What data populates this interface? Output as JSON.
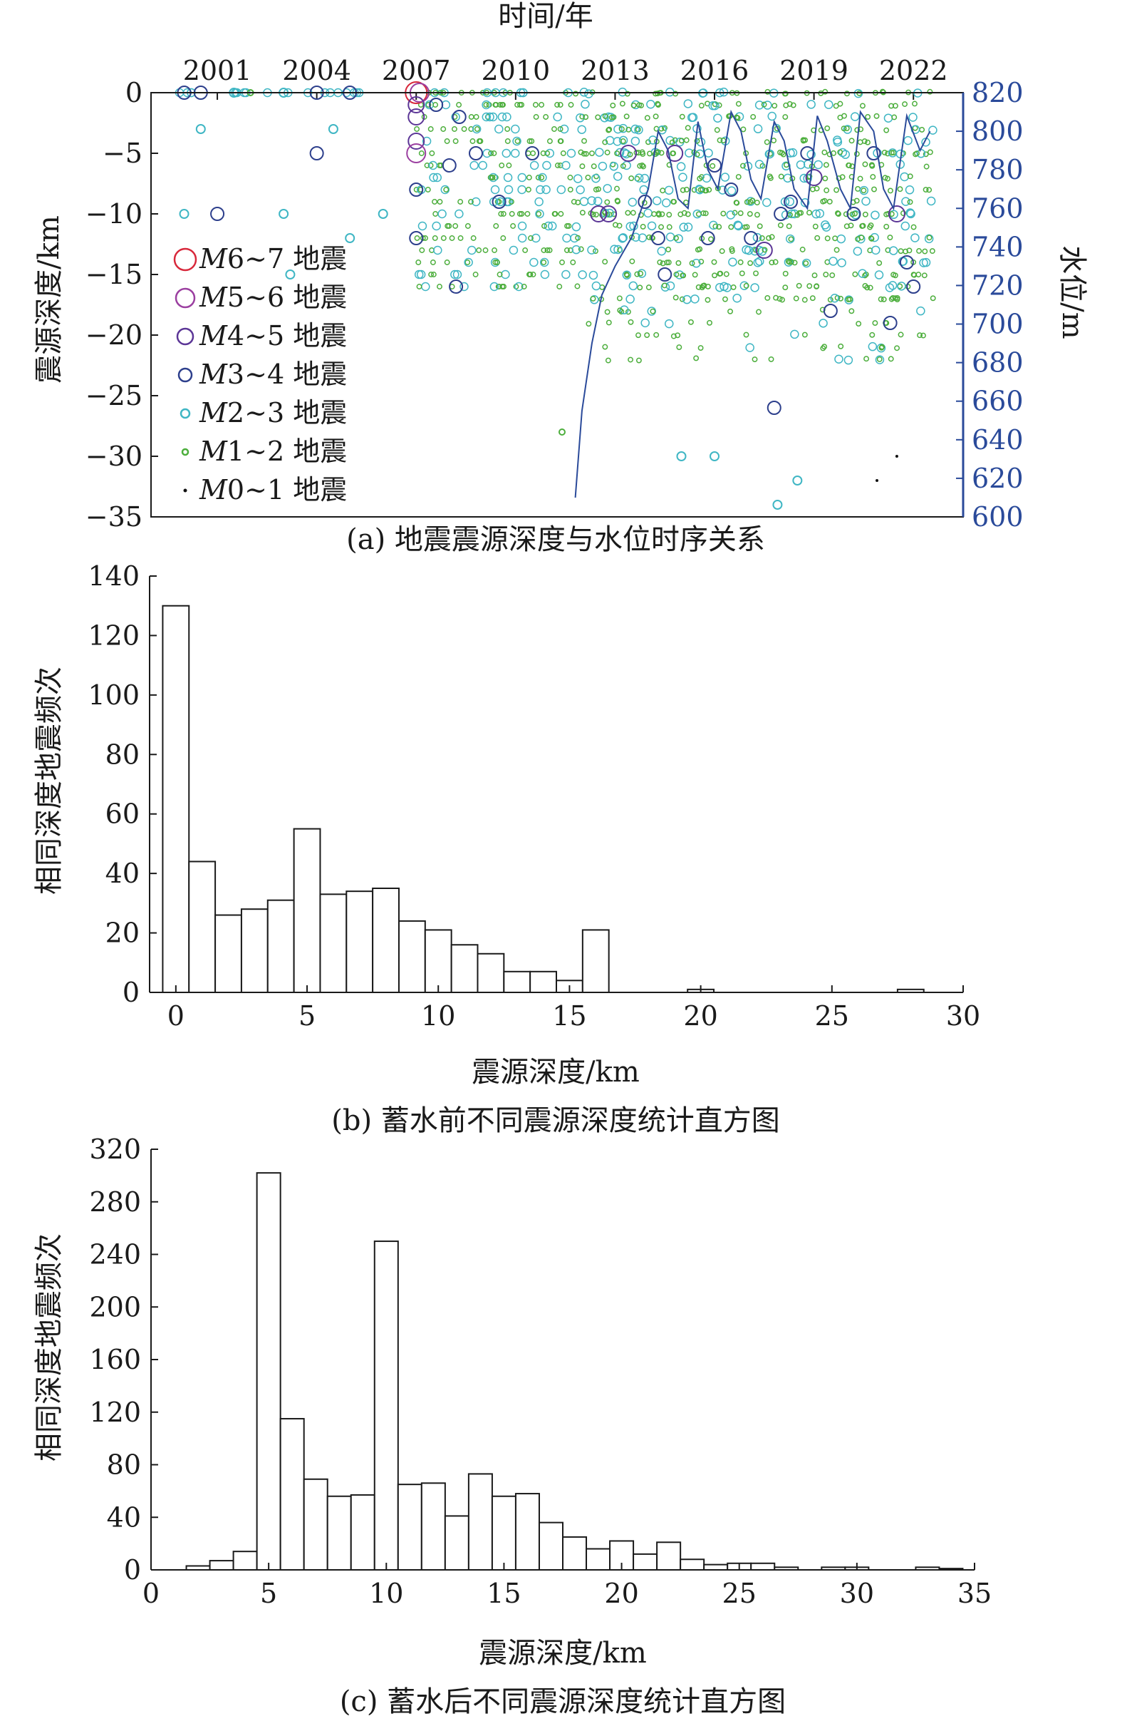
{
  "charts": [
    {
      "type": "scatter",
      "caption": "(a) 地震震源深度与水位时序关系",
      "top_label": "时间/年",
      "ylabel_left": "震源深度/km",
      "ylabel_right": "水位/m",
      "xlim": [
        1999.0,
        2023.5
      ],
      "xticks": [
        2001,
        2004,
        2007,
        2010,
        2013,
        2016,
        2019,
        2022
      ],
      "ylim_left": [
        -35,
        0
      ],
      "yticks_left": [
        0,
        -5,
        -10,
        -15,
        -20,
        -25,
        -30,
        -35
      ],
      "ylim_right": [
        600,
        820
      ],
      "yticks_right": [
        600,
        620,
        640,
        660,
        680,
        700,
        720,
        740,
        760,
        780,
        800,
        820
      ],
      "legend": [
        {
          "label": "M6~7 地震",
          "mag": "M",
          "rest": "6~7 地震",
          "color": "#d8283b",
          "size": 15
        },
        {
          "label": "M5~6 地震",
          "mag": "M",
          "rest": "5~6 地震",
          "color": "#9b3fa0",
          "size": 13
        },
        {
          "label": "M4~5 地震",
          "mag": "M",
          "rest": "4~5 地震",
          "color": "#5b3596",
          "size": 11
        },
        {
          "label": "M3~4 地震",
          "mag": "M",
          "rest": "3~4 地震",
          "color": "#2d3f8c",
          "size": 9
        },
        {
          "label": "M2~3 地震",
          "mag": "M",
          "rest": "2~3 地震",
          "color": "#3fb6c4",
          "size": 6
        },
        {
          "label": "M1~2 地震",
          "mag": "M",
          "rest": "1~2 地震",
          "color": "#4cae3c",
          "size": 4
        },
        {
          "label": "M0~1 地震",
          "mag": "M",
          "rest": "0~1 地震",
          "color": "#111111",
          "size": 2
        }
      ],
      "water_level": {
        "color": "#2a4a9a",
        "x": [
          2011.8,
          2012.0,
          2012.3,
          2012.6,
          2013.0,
          2013.5,
          2014.0,
          2014.3,
          2014.6,
          2014.9,
          2015.2,
          2015.5,
          2015.8,
          2016.1,
          2016.5,
          2016.8,
          2017.1,
          2017.4,
          2017.8,
          2018.1,
          2018.4,
          2018.8,
          2019.1,
          2019.4,
          2019.8,
          2020.1,
          2020.4,
          2020.8,
          2021.1,
          2021.4,
          2021.8,
          2022.2,
          2022.5
        ],
        "y": [
          610,
          655,
          690,
          715,
          730,
          745,
          770,
          800,
          790,
          765,
          760,
          805,
          780,
          770,
          810,
          800,
          775,
          765,
          805,
          795,
          770,
          760,
          808,
          795,
          770,
          760,
          810,
          800,
          770,
          760,
          808,
          790,
          800
        ]
      },
      "points": [
        {
          "x": 2000.0,
          "y": 0,
          "m": 3
        },
        {
          "x": 2000.5,
          "y": 0,
          "m": 3
        },
        {
          "x": 2001.5,
          "y": 0,
          "m": 2
        },
        {
          "x": 2002.0,
          "y": 0,
          "m": 1
        },
        {
          "x": 2003.0,
          "y": 0,
          "m": 2
        },
        {
          "x": 2004.0,
          "y": 0,
          "m": 3
        },
        {
          "x": 2005.0,
          "y": 0,
          "m": 3
        },
        {
          "x": 2000.5,
          "y": -3,
          "m": 2
        },
        {
          "x": 2004.0,
          "y": -5,
          "m": 3
        },
        {
          "x": 2001.0,
          "y": -10,
          "m": 3
        },
        {
          "x": 2000.0,
          "y": -10,
          "m": 2
        },
        {
          "x": 2003.0,
          "y": -10,
          "m": 2
        },
        {
          "x": 2006.0,
          "y": -10,
          "m": 2
        },
        {
          "x": 2004.5,
          "y": -3,
          "m": 2
        },
        {
          "x": 2005.0,
          "y": -12,
          "m": 2
        },
        {
          "x": 2003.2,
          "y": -15,
          "m": 2
        },
        {
          "x": 2007.0,
          "y": 0,
          "m": 6
        },
        {
          "x": 2007.1,
          "y": 0,
          "m": 5
        },
        {
          "x": 2007.0,
          "y": -1,
          "m": 4
        },
        {
          "x": 2007.0,
          "y": -2,
          "m": 4
        },
        {
          "x": 2007.0,
          "y": -4,
          "m": 4
        },
        {
          "x": 2007.0,
          "y": -5,
          "m": 5
        },
        {
          "x": 2007.0,
          "y": -8,
          "m": 3
        },
        {
          "x": 2007.0,
          "y": -12,
          "m": 3
        },
        {
          "x": 2007.6,
          "y": -1,
          "m": 3
        },
        {
          "x": 2008.0,
          "y": -6,
          "m": 3
        },
        {
          "x": 2008.3,
          "y": -2,
          "m": 3
        },
        {
          "x": 2008.2,
          "y": -16,
          "m": 3
        },
        {
          "x": 2008.8,
          "y": -5,
          "m": 3
        },
        {
          "x": 2009.5,
          "y": -9,
          "m": 3
        },
        {
          "x": 2010.5,
          "y": -5,
          "m": 3
        },
        {
          "x": 2012.5,
          "y": -10,
          "m": 4
        },
        {
          "x": 2012.8,
          "y": -10,
          "m": 4
        },
        {
          "x": 2013.4,
          "y": -5,
          "m": 4
        },
        {
          "x": 2013.9,
          "y": -9,
          "m": 3
        },
        {
          "x": 2014.3,
          "y": -12,
          "m": 3
        },
        {
          "x": 2014.8,
          "y": -5,
          "m": 4
        },
        {
          "x": 2016.0,
          "y": -6,
          "m": 3
        },
        {
          "x": 2016.5,
          "y": -8,
          "m": 3
        },
        {
          "x": 2017.1,
          "y": -12,
          "m": 3
        },
        {
          "x": 2017.5,
          "y": -13,
          "m": 4
        },
        {
          "x": 2018.0,
          "y": -10,
          "m": 3
        },
        {
          "x": 2018.3,
          "y": -9,
          "m": 3
        },
        {
          "x": 2018.8,
          "y": -5,
          "m": 3
        },
        {
          "x": 2019.0,
          "y": -7,
          "m": 4
        },
        {
          "x": 2019.5,
          "y": -18,
          "m": 3
        },
        {
          "x": 2020.2,
          "y": -10,
          "m": 3
        },
        {
          "x": 2021.5,
          "y": -10,
          "m": 4
        },
        {
          "x": 2021.8,
          "y": -14,
          "m": 3
        },
        {
          "x": 2022.0,
          "y": -16,
          "m": 3
        },
        {
          "x": 2021.3,
          "y": -19,
          "m": 3
        },
        {
          "x": 2017.8,
          "y": -26,
          "m": 3
        },
        {
          "x": 2015.0,
          "y": -30,
          "m": 2
        },
        {
          "x": 2016.0,
          "y": -30,
          "m": 2
        },
        {
          "x": 2018.5,
          "y": -32,
          "m": 2
        },
        {
          "x": 2017.9,
          "y": -34,
          "m": 2
        },
        {
          "x": 2014.5,
          "y": -15,
          "m": 3
        },
        {
          "x": 2015.8,
          "y": -12,
          "m": 3
        },
        {
          "x": 2020.8,
          "y": -5,
          "m": 3
        },
        {
          "x": 2011.4,
          "y": -28,
          "m": 1
        },
        {
          "x": 2021.5,
          "y": -30,
          "m": 0
        },
        {
          "x": 2020.9,
          "y": -32,
          "m": 0
        }
      ],
      "background_density": {
        "bands_km": [
          0,
          -1,
          -2,
          -3,
          -4,
          -5,
          -6,
          -7,
          -8,
          -9,
          -10,
          -11,
          -12,
          -13,
          -14,
          -15,
          -16,
          -17,
          -18,
          -19,
          -20,
          -21,
          -22
        ],
        "pre_impoundment_years": [
          2007.0,
          2011.8
        ],
        "post_impoundment_years": [
          2011.8,
          2022.6
        ]
      }
    },
    {
      "type": "bar",
      "caption": "(b) 蓄水前不同震源深度统计直方图",
      "xlabel": "震源深度/km",
      "ylabel": "相同深度地震频次",
      "bin_width": 1,
      "xlim": [
        -1,
        30
      ],
      "ylim": [
        0,
        140
      ],
      "xticks": [
        0,
        5,
        10,
        15,
        20,
        25,
        30
      ],
      "yticks": [
        0,
        20,
        40,
        60,
        80,
        100,
        120,
        140
      ],
      "bin_centers": [
        0,
        1,
        2,
        3,
        4,
        5,
        6,
        7,
        8,
        9,
        10,
        11,
        12,
        13,
        14,
        15,
        16,
        17,
        18,
        19,
        20,
        21,
        22,
        23,
        24,
        25,
        26,
        27,
        28
      ],
      "values": [
        130,
        44,
        26,
        28,
        31,
        55,
        33,
        34,
        35,
        24,
        21,
        16,
        13,
        7,
        7,
        4,
        21,
        0,
        0,
        0,
        1,
        0,
        0,
        0,
        0,
        0,
        0,
        0,
        1
      ]
    },
    {
      "type": "bar",
      "caption": "(c) 蓄水后不同震源深度统计直方图",
      "xlabel": "震源深度/km",
      "ylabel": "相同深度地震频次",
      "bin_width": 1,
      "xlim": [
        0,
        35
      ],
      "ylim": [
        0,
        320
      ],
      "xticks": [
        0,
        5,
        10,
        15,
        20,
        25,
        30,
        35
      ],
      "yticks": [
        0,
        40,
        80,
        120,
        160,
        200,
        240,
        280,
        320
      ],
      "bin_centers": [
        2,
        3,
        4,
        5,
        6,
        7,
        8,
        9,
        10,
        11,
        12,
        13,
        14,
        15,
        16,
        17,
        18,
        19,
        20,
        21,
        22,
        23,
        24,
        25,
        26,
        27,
        28,
        29,
        30,
        31,
        32,
        33,
        34
      ],
      "values": [
        3,
        7,
        14,
        302,
        115,
        69,
        56,
        57,
        250,
        65,
        66,
        41,
        73,
        56,
        58,
        36,
        25,
        16,
        22,
        12,
        21,
        8,
        4,
        5,
        5,
        2,
        0,
        2,
        2,
        0,
        0,
        2,
        1
      ]
    }
  ]
}
